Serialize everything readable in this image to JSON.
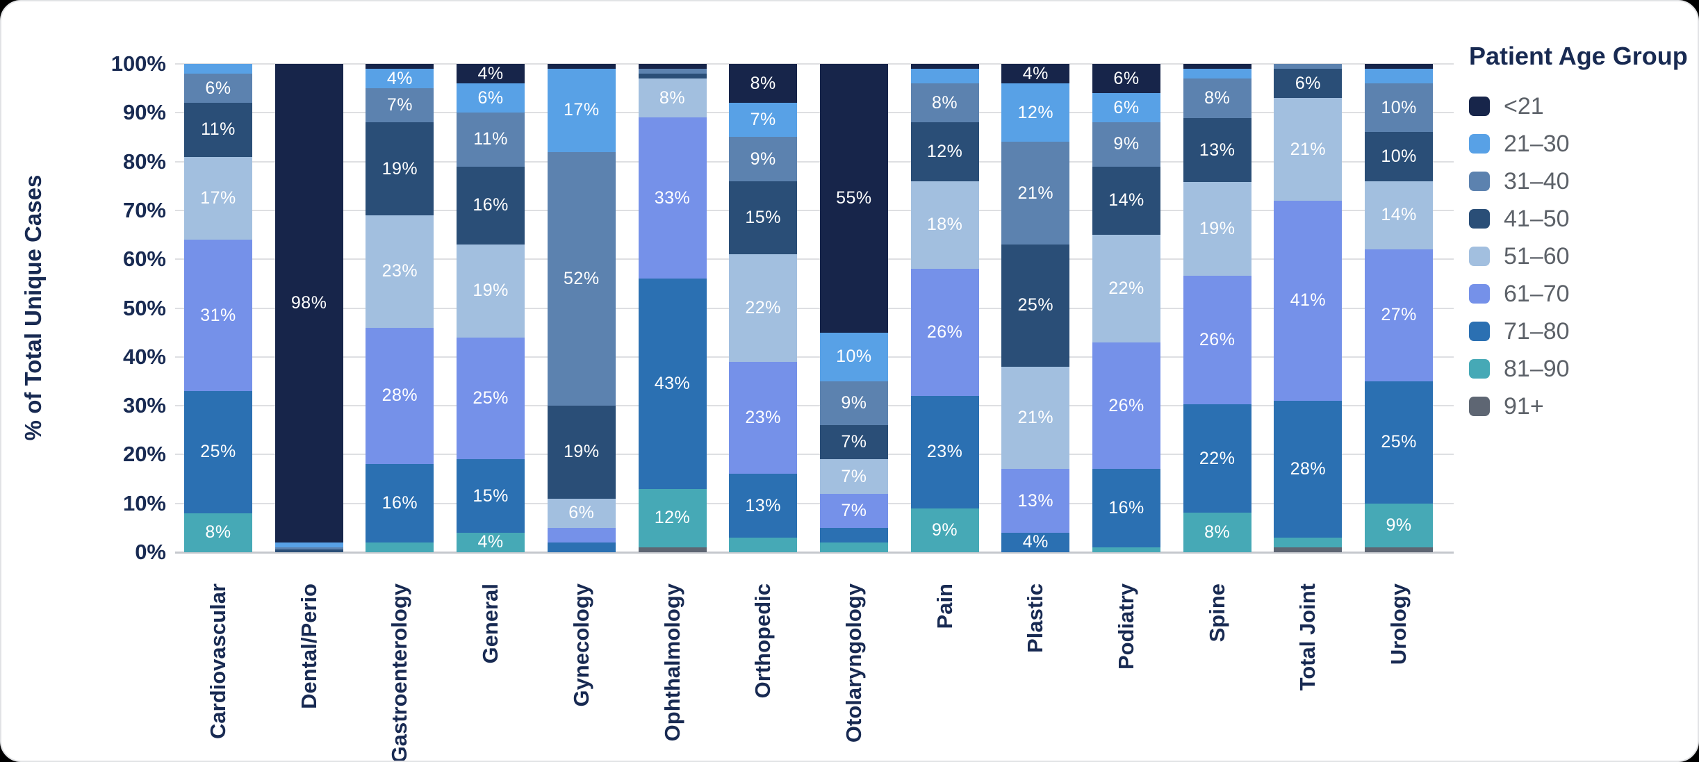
{
  "page": {
    "background": "#000000",
    "card_background": "#ffffff"
  },
  "chart": {
    "y_axis_title": "% of Total Unique Cases",
    "y_ticks": [
      "100%",
      "90%",
      "80%",
      "70%",
      "60%",
      "50%",
      "40%",
      "30%",
      "20%",
      "10%",
      "0%"
    ],
    "grid_color": "#DEDFE2",
    "axis_line_color": "#C5C8CD",
    "text_color": "#182A52"
  },
  "legend": {
    "title": "Patient Age Group",
    "items": [
      {
        "label": "<21",
        "color": "#17254A"
      },
      {
        "label": "21–30",
        "color": "#58A1E6"
      },
      {
        "label": "31–40",
        "color": "#5C82AF"
      },
      {
        "label": "41–50",
        "color": "#2A4E77"
      },
      {
        "label": "51–60",
        "color": "#A2BFDF"
      },
      {
        "label": "61–70",
        "color": "#7591E9"
      },
      {
        "label": "71–80",
        "color": "#2B70B2"
      },
      {
        "label": "81–90",
        "color": "#46A9B6"
      },
      {
        "label": "91+",
        "color": "#5E6673"
      }
    ]
  },
  "chart_data": {
    "type": "bar",
    "stacked": true,
    "normalized_to_100_percent": true,
    "title": "",
    "xlabel": "",
    "ylabel": "% of Total Unique Cases",
    "ylim": [
      0,
      100
    ],
    "grid": true,
    "legend_position": "right",
    "segment_label_rule": "labels shown when segment value >= 4%",
    "categories": [
      "Cardiovascular",
      "Dental/Perio",
      "Gastroenterology",
      "General",
      "Gynecology",
      "Ophthalmology",
      "Orthopedic",
      "Otolaryngology",
      "Pain",
      "Plastic",
      "Podiatry",
      "Spine",
      "Total Joint",
      "Urology"
    ],
    "series": [
      {
        "name": "<21",
        "color": "#17254A",
        "values": [
          0,
          98,
          1,
          4,
          1,
          1,
          8,
          55,
          1,
          4,
          6,
          1,
          0,
          1
        ]
      },
      {
        "name": "21–30",
        "color": "#58A1E6",
        "values": [
          2,
          1,
          4,
          6,
          17,
          0,
          7,
          10,
          3,
          12,
          6,
          2,
          0,
          3
        ]
      },
      {
        "name": "31–40",
        "color": "#5C82AF",
        "values": [
          6,
          0.5,
          7,
          11,
          52,
          1,
          9,
          9,
          8,
          21,
          9,
          8,
          1,
          10
        ]
      },
      {
        "name": "41–50",
        "color": "#2A4E77",
        "values": [
          11,
          0.5,
          19,
          16,
          19,
          1,
          15,
          7,
          12,
          25,
          14,
          13,
          6,
          10
        ]
      },
      {
        "name": "51–60",
        "color": "#A2BFDF",
        "values": [
          17,
          0,
          23,
          19,
          6,
          8,
          22,
          7,
          18,
          21,
          22,
          19,
          21,
          14
        ]
      },
      {
        "name": "61–70",
        "color": "#7591E9",
        "values": [
          31,
          0,
          28,
          25,
          3,
          33,
          23,
          7,
          26,
          13,
          26,
          26,
          41,
          27
        ]
      },
      {
        "name": "71–80",
        "color": "#2B70B2",
        "values": [
          25,
          0,
          16,
          15,
          2,
          43,
          13,
          3,
          23,
          4,
          16,
          22,
          28,
          25
        ]
      },
      {
        "name": "81–90",
        "color": "#46A9B6",
        "values": [
          8,
          0,
          2,
          4,
          0,
          12,
          3,
          2,
          9,
          0,
          1,
          8,
          2,
          9
        ]
      },
      {
        "name": "91+",
        "color": "#5E6673",
        "values": [
          0,
          0,
          0,
          0,
          0,
          1,
          0,
          0,
          0,
          0,
          0,
          0,
          1,
          1
        ]
      }
    ]
  }
}
